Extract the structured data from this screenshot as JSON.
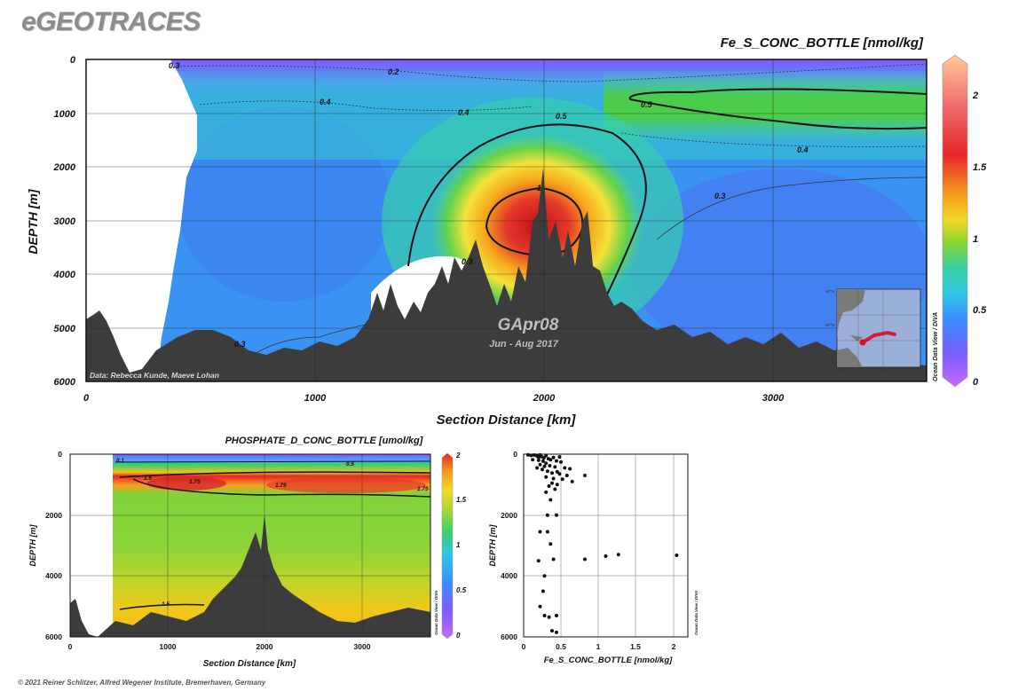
{
  "brand": "eGEOTRACES",
  "footer": "© 2021 Reiner Schlitzer, Alfred Wegener Institute, Bremerhaven, Germany",
  "odv_label": "Ocean Data View / DIVA",
  "chart_data": [
    {
      "type": "heatmap",
      "title": "Fe_S_CONC_BOTTLE [nmol/kg]",
      "xlabel": "Section Distance [km]",
      "ylabel": "DEPTH [m]",
      "xlim": [
        0,
        3700
      ],
      "ylim": [
        6000,
        0
      ],
      "xticks": [
        "0",
        "1000",
        "2000",
        "3000"
      ],
      "yticks": [
        "0",
        "1000",
        "2000",
        "3000",
        "4000",
        "5000",
        "6000"
      ],
      "colorbar": {
        "min": 0,
        "max": 2.2,
        "ticks": [
          "0",
          "0.5",
          "1",
          "1.5",
          "2"
        ]
      },
      "contour_labels": [
        "0.2",
        "0.3",
        "0.4",
        "0.4",
        "0.4",
        "0.5",
        "0.5",
        "0.3",
        "1",
        "0.3",
        "0.3"
      ],
      "annotations": {
        "cruise": "GApr08",
        "dates": "Jun - Aug 2017",
        "credit": "Data: Rebecca Kunde, Maeve Lohan"
      },
      "inset_map_labels": [
        "40°N",
        "30°N",
        "20°N",
        "80°W",
        "60°W"
      ],
      "colors": {
        "low": "#9a4dff",
        "mid": "#38d8b8",
        "high": "#e42b2b",
        "top": "#ffc99a",
        "seafloor": "#3c3c3c"
      }
    },
    {
      "type": "heatmap",
      "title": "PHOSPHATE_D_CONC_BOTTLE [umol/kg]",
      "xlabel": "Section Distance [km]",
      "ylabel": "DEPTH [m]",
      "xlim": [
        0,
        3700
      ],
      "ylim": [
        6000,
        0
      ],
      "xticks": [
        "0",
        "1000",
        "2000",
        "3000"
      ],
      "yticks": [
        "0",
        "2000",
        "4000",
        "6000"
      ],
      "colorbar": {
        "min": 0,
        "max": 2,
        "ticks": [
          "0",
          "0.5",
          "1",
          "1.5",
          "2"
        ]
      },
      "contour_labels": [
        "0.1",
        "0.5",
        "1.5",
        "1.75",
        "1.75",
        "1.75",
        "1.5"
      ]
    },
    {
      "type": "scatter",
      "xlabel": "Fe_S_CONC_BOTTLE [nmol/kg]",
      "ylabel": "DEPTH [m]",
      "xlim": [
        0,
        2.2
      ],
      "ylim": [
        6000,
        0
      ],
      "xticks": [
        "0",
        "0.5",
        "1",
        "1.5",
        "2"
      ],
      "yticks": [
        "0",
        "2000",
        "4000",
        "6000"
      ],
      "points": [
        {
          "x": 0.06,
          "y": 20
        },
        {
          "x": 0.1,
          "y": 40
        },
        {
          "x": 0.14,
          "y": 30
        },
        {
          "x": 0.18,
          "y": 60
        },
        {
          "x": 0.2,
          "y": 100
        },
        {
          "x": 0.22,
          "y": 25
        },
        {
          "x": 0.24,
          "y": 80
        },
        {
          "x": 0.27,
          "y": 120
        },
        {
          "x": 0.3,
          "y": 50
        },
        {
          "x": 0.33,
          "y": 150
        },
        {
          "x": 0.12,
          "y": 180
        },
        {
          "x": 0.2,
          "y": 200
        },
        {
          "x": 0.26,
          "y": 230
        },
        {
          "x": 0.36,
          "y": 180
        },
        {
          "x": 0.4,
          "y": 110
        },
        {
          "x": 0.44,
          "y": 220
        },
        {
          "x": 0.48,
          "y": 90
        },
        {
          "x": 0.5,
          "y": 260
        },
        {
          "x": 0.3,
          "y": 300
        },
        {
          "x": 0.22,
          "y": 340
        },
        {
          "x": 0.28,
          "y": 400
        },
        {
          "x": 0.35,
          "y": 380
        },
        {
          "x": 0.42,
          "y": 420
        },
        {
          "x": 0.55,
          "y": 450
        },
        {
          "x": 0.62,
          "y": 480
        },
        {
          "x": 0.18,
          "y": 450
        },
        {
          "x": 0.25,
          "y": 500
        },
        {
          "x": 0.32,
          "y": 560
        },
        {
          "x": 0.45,
          "y": 580
        },
        {
          "x": 0.38,
          "y": 620
        },
        {
          "x": 0.48,
          "y": 650
        },
        {
          "x": 0.58,
          "y": 700
        },
        {
          "x": 0.82,
          "y": 700
        },
        {
          "x": 0.3,
          "y": 750
        },
        {
          "x": 0.4,
          "y": 800
        },
        {
          "x": 0.52,
          "y": 820
        },
        {
          "x": 0.65,
          "y": 900
        },
        {
          "x": 0.38,
          "y": 950
        },
        {
          "x": 0.45,
          "y": 1000
        },
        {
          "x": 0.34,
          "y": 1050
        },
        {
          "x": 0.42,
          "y": 1150
        },
        {
          "x": 0.3,
          "y": 1250
        },
        {
          "x": 0.36,
          "y": 1500
        },
        {
          "x": 0.32,
          "y": 2000
        },
        {
          "x": 0.44,
          "y": 2000
        },
        {
          "x": 0.22,
          "y": 2550
        },
        {
          "x": 0.32,
          "y": 2550
        },
        {
          "x": 0.36,
          "y": 2950
        },
        {
          "x": 0.2,
          "y": 3500
        },
        {
          "x": 0.4,
          "y": 3450
        },
        {
          "x": 0.82,
          "y": 3450
        },
        {
          "x": 1.1,
          "y": 3350
        },
        {
          "x": 1.27,
          "y": 3300
        },
        {
          "x": 2.05,
          "y": 3320
        },
        {
          "x": 0.28,
          "y": 4000
        },
        {
          "x": 0.26,
          "y": 4500
        },
        {
          "x": 0.22,
          "y": 5000
        },
        {
          "x": 0.28,
          "y": 5300
        },
        {
          "x": 0.34,
          "y": 5350
        },
        {
          "x": 0.44,
          "y": 5300
        },
        {
          "x": 0.38,
          "y": 5800
        },
        {
          "x": 0.44,
          "y": 5850
        }
      ]
    }
  ]
}
